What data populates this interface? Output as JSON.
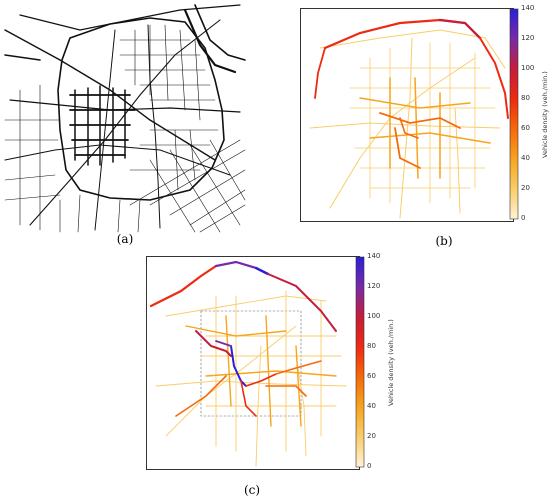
{
  "captions": {
    "a": "(a)",
    "b": "(b)",
    "c": "(c)"
  },
  "colorbar": {
    "title": "Vehicle density (veh./min.)",
    "ticks": [
      "140",
      "120",
      "100",
      "80",
      "60",
      "40",
      "20",
      "0"
    ],
    "stops": [
      "#2a1fd6",
      "#7a2aa8",
      "#c51d3a",
      "#ee2a12",
      "#f56a0a",
      "#f7a41e",
      "#f9cd6a",
      "#fff3d6"
    ]
  }
}
